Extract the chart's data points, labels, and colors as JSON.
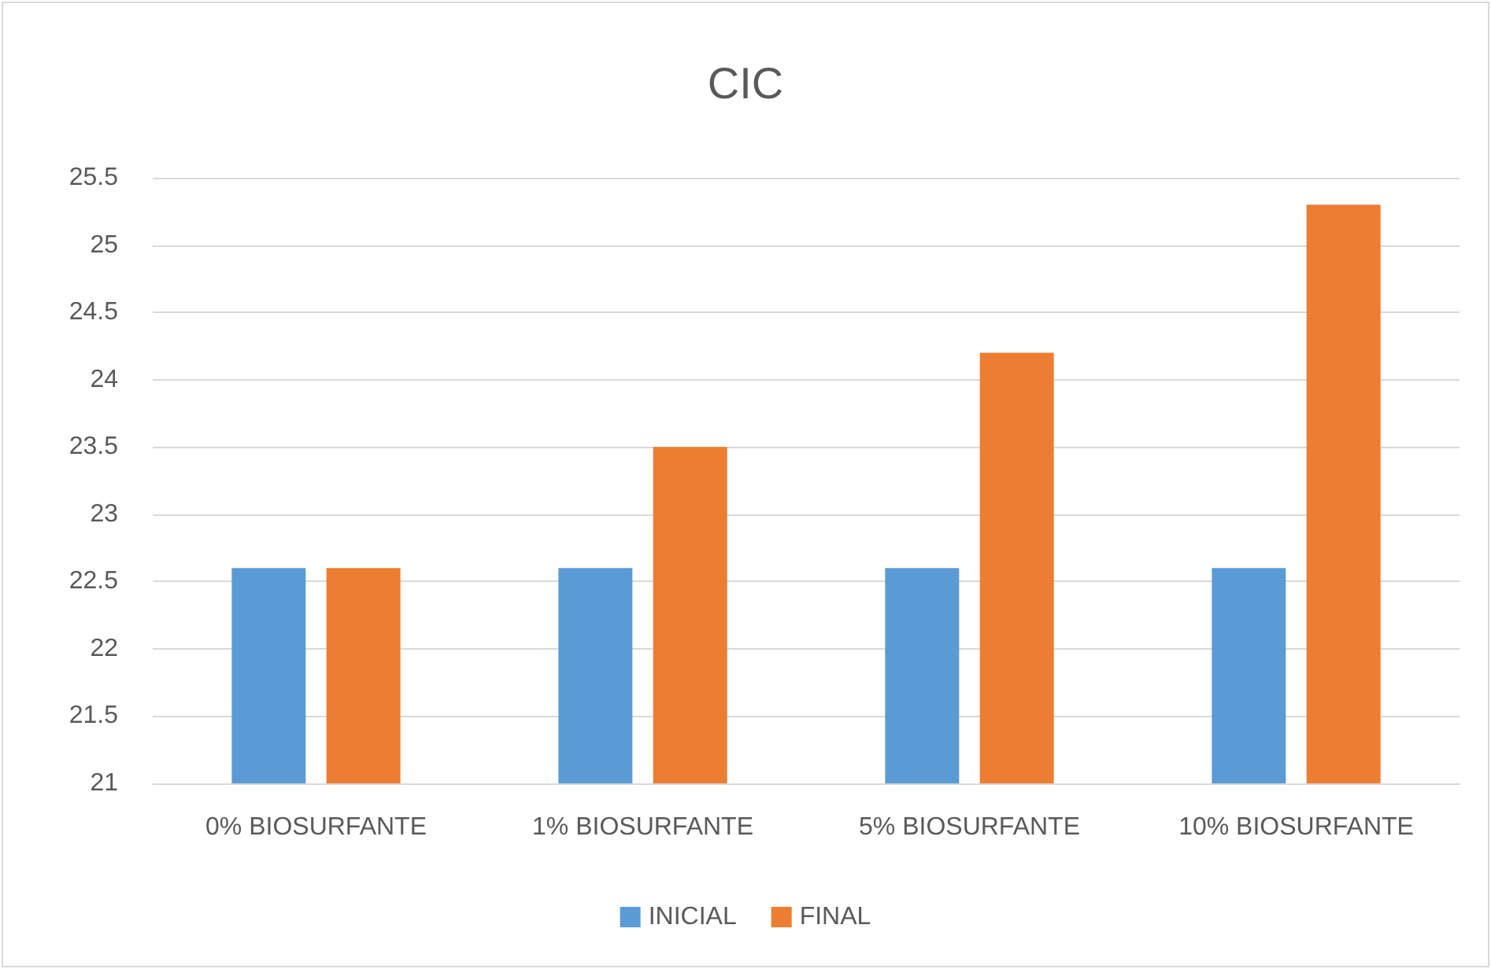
{
  "chart_data": {
    "type": "bar",
    "title": "CIC",
    "categories": [
      "0% BIOSURFANTE",
      "1% BIOSURFANTE",
      "5% BIOSURFANTE",
      "10% BIOSURFANTE"
    ],
    "series": [
      {
        "name": "INICIAL",
        "color": "#5b9bd5",
        "values": [
          22.6,
          22.6,
          22.6,
          22.6
        ]
      },
      {
        "name": "FINAL",
        "color": "#ed7d31",
        "values": [
          22.6,
          23.5,
          24.2,
          25.3
        ]
      }
    ],
    "ylim": [
      21,
      25.5
    ],
    "yticks": [
      21,
      21.5,
      22,
      22.5,
      23,
      23.5,
      24,
      24.5,
      25,
      25.5
    ],
    "grid": "y",
    "legend": "bottom"
  }
}
